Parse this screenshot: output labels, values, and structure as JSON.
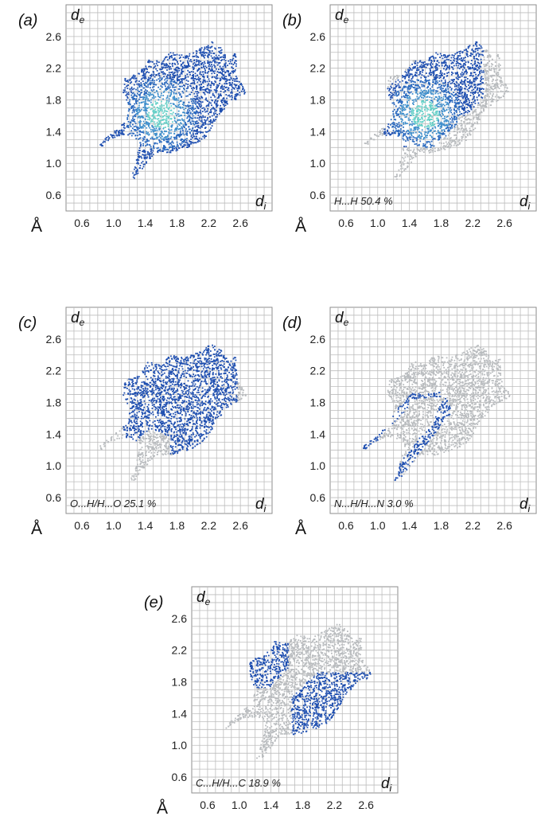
{
  "chart_data": [
    {
      "type": "scatter",
      "panel_label": "(a)",
      "title": "",
      "xlabel": "d",
      "xlabel_sub": "i",
      "ylabel": "d",
      "ylabel_sub": "e",
      "unit_label": "Å",
      "annotation": "",
      "xlim": [
        0.4,
        3.0
      ],
      "ylim": [
        0.4,
        3.0
      ],
      "x_ticks": [
        "0.6",
        "1.0",
        "1.4",
        "1.8",
        "2.2",
        "2.6"
      ],
      "y_ticks": [
        "0.6",
        "1.0",
        "1.4",
        "1.8",
        "2.2",
        "2.6"
      ],
      "grid": true,
      "colors": {
        "highlight": "#1f4fb0",
        "dense": "#66d0c8",
        "background": "#b9bcbf"
      },
      "highlight": "all"
    },
    {
      "type": "scatter",
      "panel_label": "(b)",
      "title": "",
      "xlabel": "d",
      "xlabel_sub": "i",
      "ylabel": "d",
      "ylabel_sub": "e",
      "unit_label": "Å",
      "annotation": "H...H  50.4 %",
      "xlim": [
        0.4,
        3.0
      ],
      "ylim": [
        0.4,
        3.0
      ],
      "x_ticks": [
        "0.6",
        "1.0",
        "1.4",
        "1.8",
        "2.2",
        "2.6"
      ],
      "y_ticks": [
        "0.6",
        "1.0",
        "1.4",
        "1.8",
        "2.2",
        "2.6"
      ],
      "grid": true,
      "colors": {
        "highlight": "#1f4fb0",
        "dense": "#66d0c8",
        "background": "#b9bcbf"
      },
      "highlight": "HH",
      "percent": 50.4
    },
    {
      "type": "scatter",
      "panel_label": "(c)",
      "title": "",
      "xlabel": "d",
      "xlabel_sub": "i",
      "ylabel": "d",
      "ylabel_sub": "e",
      "unit_label": "Å",
      "annotation": "O...H/H...O  25.1 %",
      "xlim": [
        0.4,
        3.0
      ],
      "ylim": [
        0.4,
        3.0
      ],
      "x_ticks": [
        "0.6",
        "1.0",
        "1.4",
        "1.8",
        "2.2",
        "2.6"
      ],
      "y_ticks": [
        "0.6",
        "1.0",
        "1.4",
        "1.8",
        "2.2",
        "2.6"
      ],
      "grid": true,
      "colors": {
        "highlight": "#1f4fb0",
        "dense": "#66d0c8",
        "background": "#b9bcbf"
      },
      "highlight": "OH",
      "percent": 25.1
    },
    {
      "type": "scatter",
      "panel_label": "(d)",
      "title": "",
      "xlabel": "d",
      "xlabel_sub": "i",
      "ylabel": "d",
      "ylabel_sub": "e",
      "unit_label": "Å",
      "annotation": "N...H/H...N  3.0 %",
      "xlim": [
        0.4,
        3.0
      ],
      "ylim": [
        0.4,
        3.0
      ],
      "x_ticks": [
        "0.6",
        "1.0",
        "1.4",
        "1.8",
        "2.2",
        "2.6"
      ],
      "y_ticks": [
        "0.6",
        "1.0",
        "1.4",
        "1.8",
        "2.2",
        "2.6"
      ],
      "grid": true,
      "colors": {
        "highlight": "#1f4fb0",
        "dense": "#66d0c8",
        "background": "#b9bcbf"
      },
      "highlight": "NH",
      "percent": 3.0
    },
    {
      "type": "scatter",
      "panel_label": "(e)",
      "title": "",
      "xlabel": "d",
      "xlabel_sub": "i",
      "ylabel": "d",
      "ylabel_sub": "e",
      "unit_label": "Å",
      "annotation": "C...H/H...C  18.9 %",
      "xlim": [
        0.4,
        3.0
      ],
      "ylim": [
        0.4,
        3.0
      ],
      "x_ticks": [
        "0.6",
        "1.0",
        "1.4",
        "1.8",
        "2.2",
        "2.6"
      ],
      "y_ticks": [
        "0.6",
        "1.0",
        "1.4",
        "1.8",
        "2.2",
        "2.6"
      ],
      "grid": true,
      "colors": {
        "highlight": "#1f4fb0",
        "dense": "#66d0c8",
        "background": "#b9bcbf"
      },
      "highlight": "CH",
      "percent": 18.9
    }
  ]
}
